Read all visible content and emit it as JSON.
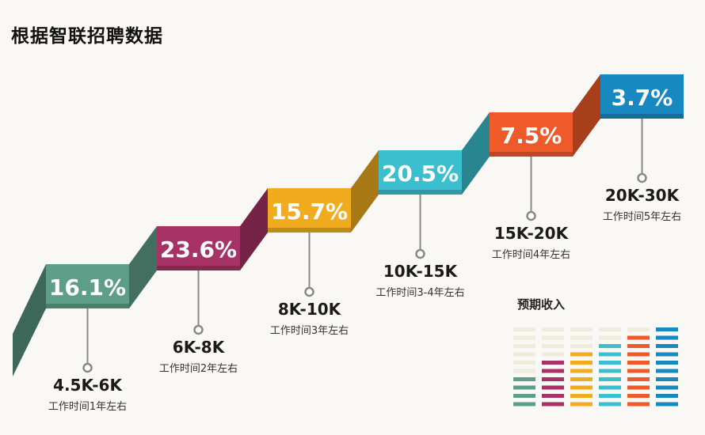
{
  "page": {
    "title": "根据智联招聘数据"
  },
  "legend": {
    "title": "预期收入"
  },
  "colors": {
    "teal": "#5e9e88",
    "magenta": "#a63266",
    "yellow": "#f0ac1e",
    "cyan": "#3bbfcf",
    "orange": "#ef5a2a",
    "blue": "#1888c0",
    "legend_bg": "#f0ebdc",
    "marker": "#888888"
  },
  "chart_data": {
    "type": "bar",
    "title": "根据智联招聘数据",
    "categories": [
      "4.5K-6K",
      "6K-8K",
      "8K-10K",
      "10K-15K",
      "15K-20K",
      "20K-30K"
    ],
    "subtitles": [
      "工作时间1年左右",
      "工作时间2年左右",
      "工作时间3年左右",
      "工作时间3-4年左右",
      "工作时间4年左右",
      "工作时间5年左右"
    ],
    "values": [
      16.1,
      23.6,
      15.7,
      20.5,
      7.5,
      3.7
    ],
    "value_labels": [
      "16.1%",
      "23.6%",
      "15.7%",
      "20.5%",
      "7.5%",
      "3.7%"
    ],
    "unit": "%",
    "legend_levels": [
      4,
      6,
      7,
      8,
      9,
      10
    ],
    "legend_max": 10
  }
}
